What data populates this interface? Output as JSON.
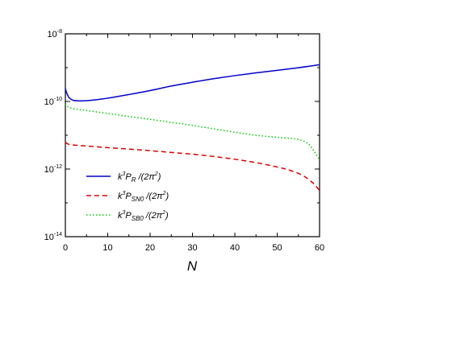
{
  "chart_data": {
    "type": "line",
    "title": "",
    "xlabel": "N",
    "ylabel": "",
    "xlim": [
      0,
      60
    ],
    "ylim": [
      1e-14,
      1e-08
    ],
    "yscale": "log",
    "x_ticks": [
      0,
      10,
      20,
      30,
      40,
      50,
      60
    ],
    "y_tick_labels": [
      {
        "value": 1e-08,
        "base": "10",
        "exp": "-8"
      },
      {
        "value": 1e-10,
        "base": "10",
        "exp": "-10"
      },
      {
        "value": 1e-12,
        "base": "10",
        "exp": "-12"
      },
      {
        "value": 1e-14,
        "base": "10",
        "exp": "-14"
      }
    ],
    "grid": false,
    "legend_position": "lower-left",
    "series": [
      {
        "name": "k³P_R /(2π²)",
        "legend": {
          "k": "k",
          "kexp": "3",
          "P": "P",
          "sub": "R",
          "rest": " /(2π",
          "rexp": "2",
          "close": ")"
        },
        "color": "#0000cc",
        "dash": "solid",
        "x": [
          0,
          0.3,
          0.7,
          1,
          1.5,
          2,
          3,
          4,
          6,
          10,
          15,
          20,
          25,
          30,
          35,
          40,
          45,
          50,
          55,
          60
        ],
        "y": [
          2.4e-10,
          1.8e-10,
          1.4e-10,
          1.25e-10,
          1.13e-10,
          1.07e-10,
          1.04e-10,
          1.04e-10,
          1.08e-10,
          1.25e-10,
          1.6e-10,
          2.1e-10,
          2.85e-10,
          3.7e-10,
          4.7e-10,
          5.8e-10,
          7e-10,
          8.3e-10,
          9.9e-10,
          1.22e-09
        ]
      },
      {
        "name": "k³P_SN0 /(2π²)",
        "legend": {
          "k": "k",
          "kexp": "3",
          "P": "P",
          "sub": "SN0",
          "rest": " /(2π",
          "rexp": "2",
          "close": ")"
        },
        "color": "#dd0000",
        "dash": "dashed",
        "x": [
          0,
          0.5,
          1,
          2,
          5,
          10,
          15,
          20,
          25,
          30,
          35,
          40,
          45,
          50,
          53,
          56,
          58,
          59,
          60
        ],
        "y": [
          6.2e-12,
          5.6e-12,
          5.3e-12,
          5.1e-12,
          4.8e-12,
          4.3e-12,
          3.9e-12,
          3.5e-12,
          3.1e-12,
          2.75e-12,
          2.35e-12,
          1.95e-12,
          1.55e-12,
          1.15e-12,
          9.2e-13,
          6.5e-13,
          4.3e-13,
          3.3e-13,
          2.3e-13
        ]
      },
      {
        "name": "k³P_SB0 /(2π²)",
        "legend": {
          "k": "k",
          "kexp": "3",
          "P": "P",
          "sub": "SB0",
          "rest": " /(2π",
          "rexp": "2",
          "close": ")"
        },
        "color": "#00cc00",
        "dash": "dotted",
        "x": [
          0,
          0.5,
          1,
          2,
          5,
          10,
          15,
          20,
          25,
          30,
          35,
          40,
          45,
          50,
          53,
          55,
          57,
          58,
          59,
          60
        ],
        "y": [
          8.5e-11,
          7.2e-11,
          6.6e-11,
          6.1e-11,
          5.4e-11,
          4.4e-11,
          3.6e-11,
          2.95e-11,
          2.4e-11,
          1.95e-11,
          1.55e-11,
          1.23e-11,
          1e-11,
          8.7e-12,
          8.1e-12,
          7.5e-12,
          6e-12,
          4.5e-12,
          3e-12,
          1.9e-12
        ]
      }
    ]
  }
}
